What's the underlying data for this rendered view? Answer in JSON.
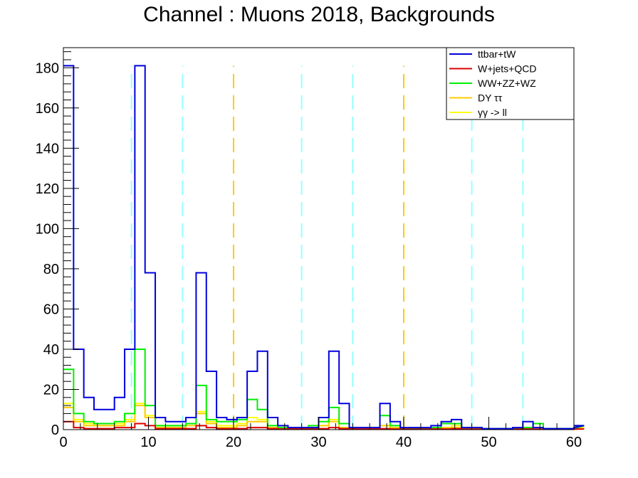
{
  "chart_data": {
    "type": "histogram",
    "title": "Channel : Muons 2018, Backgrounds",
    "xlabel": "",
    "ylabel": "",
    "xlim": [
      0,
      60
    ],
    "ylim": [
      0,
      190
    ],
    "xticks": [
      0,
      10,
      20,
      30,
      40,
      50,
      60
    ],
    "yticks": [
      0,
      20,
      40,
      60,
      80,
      100,
      120,
      140,
      160,
      180
    ],
    "bin_width": 1.2,
    "legend_position": "top-right",
    "series": [
      {
        "name": "ttbar+tW",
        "color": "#0000dd",
        "values": [
          181,
          40,
          16,
          10,
          10,
          16,
          40,
          181,
          78,
          6,
          4,
          4,
          6,
          78,
          29,
          6,
          5,
          6,
          29,
          39,
          6,
          2,
          1,
          1,
          1,
          6,
          39,
          13,
          1,
          1,
          1,
          13,
          4,
          1,
          1,
          1,
          2,
          4,
          5,
          1,
          1,
          0.5,
          0.5,
          0.5,
          1,
          4,
          1,
          0.5,
          0.5,
          0.5,
          1,
          2
        ]
      },
      {
        "name": "W+jets+QCD",
        "color": "#dd0000",
        "values": [
          4,
          1,
          0.5,
          0.5,
          0.5,
          1,
          1,
          3,
          2,
          0.5,
          0.5,
          0.5,
          0.5,
          2,
          1,
          0.5,
          0.5,
          0.5,
          1,
          1,
          0.5,
          0.3,
          0.3,
          0.3,
          0.3,
          0.5,
          1,
          0.5,
          0.3,
          0.3,
          0.3,
          0.5,
          0.3,
          0.2,
          0.2,
          0.2,
          0.3,
          0.3,
          0.5,
          0.2,
          0.2,
          0.2,
          0.2,
          0.2,
          0.2,
          0.3,
          0.2,
          0.2,
          0.2,
          0.2,
          0.2,
          0.3
        ]
      },
      {
        "name": "WW+ZZ+WZ",
        "color": "#00ee00",
        "values": [
          30,
          8,
          4,
          3,
          3,
          4,
          8,
          40,
          12,
          2,
          2,
          2,
          3,
          22,
          5,
          4,
          4,
          5,
          15,
          10,
          2,
          1,
          1,
          1,
          2,
          4,
          11,
          3,
          1,
          1,
          1,
          7,
          2,
          0.5,
          0.5,
          0.5,
          1,
          3,
          3,
          1,
          1,
          0.5,
          0.5,
          0.5,
          0.5,
          1,
          3,
          0.5,
          0.5,
          0.5,
          0.5,
          2
        ]
      },
      {
        "name": "DY ττ",
        "color": "#ffcc00",
        "values": [
          11,
          4,
          2,
          2,
          2,
          2,
          4,
          12,
          6,
          1,
          1,
          1,
          2,
          8,
          3,
          1,
          1,
          2,
          4,
          4,
          1,
          0.5,
          0.5,
          0.5,
          0.5,
          2,
          4,
          1,
          0.5,
          0.5,
          0.5,
          2,
          1,
          0.3,
          0.3,
          0.3,
          0.5,
          1,
          1,
          0.3,
          0.3,
          0.3,
          0.3,
          0.3,
          0.3,
          0.5,
          1,
          0.3,
          0.3,
          0.3,
          0.3,
          0.5
        ]
      },
      {
        "name": "γγ -> ll",
        "color": "#ffff00",
        "values": [
          13,
          5,
          3,
          2,
          2,
          3,
          5,
          13,
          7,
          2,
          2,
          2,
          3,
          9,
          4,
          2,
          2,
          3,
          6,
          5,
          1,
          0.5,
          0.5,
          0.5,
          1,
          2,
          5,
          1,
          0.5,
          0.5,
          0.5,
          2,
          1,
          0.3,
          0.3,
          0.3,
          0.5,
          1,
          2,
          0.3,
          0.3,
          0.3,
          0.3,
          0.3,
          0.3,
          1,
          1,
          0.3,
          0.3,
          0.3,
          0.3,
          1
        ]
      }
    ],
    "vertical_lines": [
      {
        "x": 8,
        "color": "#99ffff"
      },
      {
        "x": 14,
        "color": "#99ffff"
      },
      {
        "x": 20,
        "color": "#ffcc00"
      },
      {
        "x": 28,
        "color": "#99ffff"
      },
      {
        "x": 34,
        "color": "#99ffff"
      },
      {
        "x": 40,
        "color": "#ffcc00"
      },
      {
        "x": 48,
        "color": "#99ffff"
      },
      {
        "x": 54,
        "color": "#99ffff"
      }
    ]
  }
}
